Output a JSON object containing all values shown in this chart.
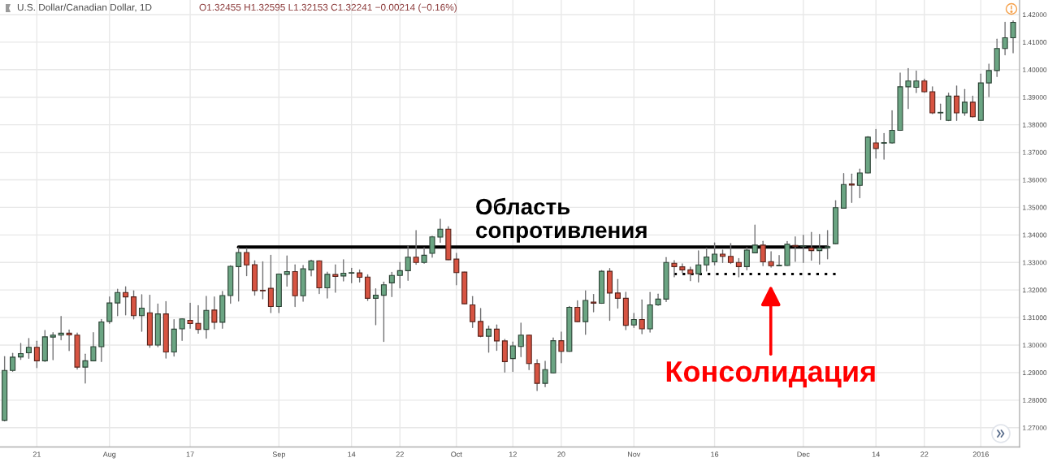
{
  "chart_data": {
    "type": "candlestick",
    "title": "U.S. Dollar/Canadian Dollar, 1D",
    "subtitle": "O1.32455 H1.32595 L1.32153 C1.32241 −0.00214 (−0.16%)",
    "categories": [
      null,
      null,
      null,
      null,
      "21",
      null,
      null,
      null,
      null,
      null,
      null,
      null,
      null,
      "Aug",
      null,
      null,
      null,
      null,
      null,
      null,
      null,
      null,
      null,
      "17",
      null,
      null,
      null,
      null,
      null,
      null,
      null,
      null,
      null,
      null,
      "Sep",
      null,
      null,
      null,
      null,
      null,
      null,
      null,
      null,
      "14",
      null,
      null,
      null,
      null,
      null,
      "22",
      null,
      null,
      null,
      null,
      null,
      null,
      "Oct",
      null,
      null,
      null,
      null,
      null,
      null,
      "12",
      null,
      null,
      null,
      null,
      null,
      "20",
      null,
      null,
      null,
      null,
      null,
      null,
      null,
      null,
      "Nov",
      null,
      null,
      null,
      null,
      null,
      null,
      null,
      null,
      null,
      "16",
      null,
      null,
      null,
      null,
      null,
      null,
      null,
      null,
      null,
      null,
      "Dec",
      null,
      null,
      null,
      null,
      null,
      null,
      null,
      null,
      "14",
      null,
      null,
      null,
      null,
      null,
      "22",
      null,
      null,
      null,
      null,
      null,
      null,
      "2016",
      null,
      null,
      null,
      null
    ],
    "ohlc": [
      [
        1.2727,
        1.2958,
        1.2725,
        1.2908
      ],
      [
        1.2908,
        1.297,
        1.2905,
        1.2956
      ],
      [
        1.2957,
        1.3006,
        1.2948,
        1.2969
      ],
      [
        1.2972,
        1.3024,
        1.2952,
        1.2992
      ],
      [
        1.2992,
        1.3014,
        1.2918,
        1.2943
      ],
      [
        1.2943,
        1.3053,
        1.294,
        1.303
      ],
      [
        1.3029,
        1.3045,
        1.2947,
        1.3036
      ],
      [
        1.3036,
        1.3104,
        1.3019,
        1.3043
      ],
      [
        1.3043,
        1.3055,
        1.298,
        1.3037
      ],
      [
        1.3036,
        1.3044,
        1.2913,
        1.292
      ],
      [
        1.292,
        1.2967,
        1.2862,
        1.2943
      ],
      [
        1.2943,
        1.3045,
        1.2943,
        1.2994
      ],
      [
        1.2994,
        1.3093,
        1.294,
        1.3084
      ],
      [
        1.3086,
        1.3175,
        1.3079,
        1.3153
      ],
      [
        1.3153,
        1.3203,
        1.3107,
        1.3191
      ],
      [
        1.3191,
        1.3212,
        1.311,
        1.3175
      ],
      [
        1.3175,
        1.3197,
        1.3095,
        1.3107
      ],
      [
        1.3107,
        1.3183,
        1.305,
        1.3134
      ],
      [
        1.3117,
        1.3181,
        1.2992,
        1.3
      ],
      [
        1.3,
        1.3149,
        1.2994,
        1.3113
      ],
      [
        1.3113,
        1.3158,
        1.2953,
        1.2975
      ],
      [
        1.2975,
        1.3092,
        1.296,
        1.3058
      ],
      [
        1.3059,
        1.3095,
        1.3017,
        1.3095
      ],
      [
        1.309,
        1.3152,
        1.3061,
        1.3078
      ],
      [
        1.3079,
        1.3143,
        1.3043,
        1.3057
      ],
      [
        1.3057,
        1.3177,
        1.3025,
        1.3126
      ],
      [
        1.3127,
        1.3175,
        1.3059,
        1.3083
      ],
      [
        1.3083,
        1.3195,
        1.3061,
        1.318
      ],
      [
        1.318,
        1.3288,
        1.3152,
        1.3286
      ],
      [
        1.3285,
        1.3353,
        1.316,
        1.3336
      ],
      [
        1.3336,
        1.3351,
        1.3252,
        1.3291
      ],
      [
        1.3292,
        1.3306,
        1.3181,
        1.3198
      ],
      [
        1.3199,
        1.3302,
        1.3168,
        1.3197
      ],
      [
        1.3206,
        1.3326,
        1.3118,
        1.314
      ],
      [
        1.314,
        1.3258,
        1.3118,
        1.3258
      ],
      [
        1.3257,
        1.3324,
        1.3214,
        1.3267
      ],
      [
        1.3267,
        1.3291,
        1.314,
        1.3179
      ],
      [
        1.3179,
        1.3289,
        1.3159,
        1.3277
      ],
      [
        1.3273,
        1.3308,
        1.3251,
        1.3306
      ],
      [
        1.3306,
        1.3306,
        1.3187,
        1.3208
      ],
      [
        1.3208,
        1.3265,
        1.3171,
        1.3257
      ],
      [
        1.3256,
        1.3291,
        1.3192,
        1.3249
      ],
      [
        1.3251,
        1.331,
        1.3233,
        1.3261
      ],
      [
        1.3261,
        1.3279,
        1.3226,
        1.3263
      ],
      [
        1.3262,
        1.3273,
        1.3229,
        1.3246
      ],
      [
        1.3247,
        1.3255,
        1.3162,
        1.317
      ],
      [
        1.317,
        1.3204,
        1.3074,
        1.3181
      ],
      [
        1.3181,
        1.3229,
        1.3013,
        1.3219
      ],
      [
        1.3226,
        1.3264,
        1.3176,
        1.3253
      ],
      [
        1.3253,
        1.33,
        1.3208,
        1.327
      ],
      [
        1.327,
        1.3359,
        1.3235,
        1.3319
      ],
      [
        1.3319,
        1.3416,
        1.3293,
        1.33
      ],
      [
        1.33,
        1.3353,
        1.3297,
        1.3326
      ],
      [
        1.3333,
        1.3395,
        1.3319,
        1.3393
      ],
      [
        1.3392,
        1.3457,
        1.3373,
        1.3421
      ],
      [
        1.3421,
        1.343,
        1.331,
        1.331
      ],
      [
        1.3312,
        1.3333,
        1.3219,
        1.3263
      ],
      [
        1.3265,
        1.3265,
        1.315,
        1.315
      ],
      [
        1.3146,
        1.3176,
        1.3064,
        1.3085
      ],
      [
        1.3086,
        1.3133,
        1.303,
        1.3032
      ],
      [
        1.3032,
        1.3069,
        1.2974,
        1.3058
      ],
      [
        1.3058,
        1.3073,
        1.2981,
        1.3015
      ],
      [
        1.3015,
        1.3021,
        1.2902,
        1.294
      ],
      [
        1.2951,
        1.3011,
        1.2904,
        1.2997
      ],
      [
        1.2995,
        1.308,
        1.2958,
        1.3036
      ],
      [
        1.3036,
        1.3036,
        1.2911,
        1.2933
      ],
      [
        1.2933,
        1.2947,
        1.2835,
        1.2861
      ],
      [
        1.2861,
        1.2941,
        1.2849,
        1.2911
      ],
      [
        1.2899,
        1.3026,
        1.2899,
        1.3016
      ],
      [
        1.3016,
        1.3047,
        1.2936,
        1.2977
      ],
      [
        1.2977,
        1.314,
        1.2977,
        1.3137
      ],
      [
        1.3137,
        1.3161,
        1.3085,
        1.3085
      ],
      [
        1.3085,
        1.3197,
        1.3039,
        1.3162
      ],
      [
        1.3156,
        1.3184,
        1.3121,
        1.3152
      ],
      [
        1.3152,
        1.3271,
        1.3152,
        1.3268
      ],
      [
        1.3268,
        1.3278,
        1.309,
        1.3189
      ],
      [
        1.3189,
        1.3238,
        1.3134,
        1.317
      ],
      [
        1.317,
        1.3192,
        1.3056,
        1.3072
      ],
      [
        1.3073,
        1.3115,
        1.3064,
        1.3093
      ],
      [
        1.3093,
        1.3164,
        1.3041,
        1.3059
      ],
      [
        1.3059,
        1.3191,
        1.3047,
        1.3146
      ],
      [
        1.3146,
        1.3185,
        1.3144,
        1.3167
      ],
      [
        1.3167,
        1.3318,
        1.3158,
        1.33
      ],
      [
        1.3297,
        1.3307,
        1.3248,
        1.3285
      ],
      [
        1.3284,
        1.3295,
        1.3263,
        1.3273
      ],
      [
        1.3273,
        1.3283,
        1.3234,
        1.3259
      ],
      [
        1.3259,
        1.3342,
        1.3229,
        1.3291
      ],
      [
        1.3291,
        1.3352,
        1.3269,
        1.332
      ],
      [
        1.3302,
        1.3371,
        1.3291,
        1.333
      ],
      [
        1.333,
        1.3345,
        1.33,
        1.3322
      ],
      [
        1.3322,
        1.3369,
        1.3296,
        1.33
      ],
      [
        1.33,
        1.3314,
        1.3248,
        1.3285
      ],
      [
        1.3285,
        1.3354,
        1.3273,
        1.3345
      ],
      [
        1.3335,
        1.3436,
        1.3335,
        1.3363
      ],
      [
        1.3363,
        1.3377,
        1.3288,
        1.3302
      ],
      [
        1.3303,
        1.3339,
        1.3283,
        1.3288
      ],
      [
        1.3288,
        1.3325,
        1.3288,
        1.329
      ],
      [
        1.3289,
        1.3376,
        1.3289,
        1.3366
      ],
      [
        1.3362,
        1.3393,
        1.3304,
        1.3358
      ],
      [
        1.3358,
        1.3399,
        1.33,
        1.336
      ],
      [
        1.3353,
        1.3409,
        1.3308,
        1.3343
      ],
      [
        1.3343,
        1.3402,
        1.3294,
        1.3353
      ],
      [
        1.3353,
        1.3416,
        1.3313,
        1.3357
      ],
      [
        1.3368,
        1.3524,
        1.3368,
        1.3499
      ],
      [
        1.3497,
        1.3623,
        1.3497,
        1.3583
      ],
      [
        1.3585,
        1.3621,
        1.3518,
        1.3581
      ],
      [
        1.358,
        1.3639,
        1.3535,
        1.3625
      ],
      [
        1.3625,
        1.3757,
        1.3625,
        1.3755
      ],
      [
        1.3734,
        1.3783,
        1.3679,
        1.3714
      ],
      [
        1.3733,
        1.3768,
        1.3675,
        1.3735
      ],
      [
        1.3734,
        1.3851,
        1.3733,
        1.378
      ],
      [
        1.378,
        1.3988,
        1.378,
        1.3938
      ],
      [
        1.3938,
        1.4004,
        1.3859,
        1.3959
      ],
      [
        1.3936,
        1.3995,
        1.3917,
        1.3959
      ],
      [
        1.3959,
        1.3966,
        1.3918,
        1.392
      ],
      [
        1.392,
        1.3938,
        1.384,
        1.3843
      ],
      [
        1.3843,
        1.3875,
        1.3819,
        1.3845
      ],
      [
        1.3816,
        1.3915,
        1.3815,
        1.3904
      ],
      [
        1.3904,
        1.3941,
        1.3816,
        1.3843
      ],
      [
        1.3843,
        1.3928,
        1.3834,
        1.3882
      ],
      [
        1.3882,
        1.3904,
        1.3828,
        1.3829
      ],
      [
        1.3816,
        1.3984,
        1.3816,
        1.3952
      ],
      [
        1.3952,
        1.402,
        1.3902,
        1.3997
      ],
      [
        1.3997,
        1.4111,
        1.3975,
        1.4077
      ],
      [
        1.4077,
        1.4172,
        1.4054,
        1.4116
      ],
      [
        1.4116,
        1.4177,
        1.4061,
        1.4172
      ]
    ],
    "colors": [
      "#6ba583",
      "#6ba583",
      "#6ba583",
      "#6ba583",
      "#d75442",
      "#6ba583",
      "#6ba583",
      "#6ba583",
      "#d75442",
      "#d75442",
      "#6ba583",
      "#6ba583",
      "#6ba583",
      "#6ba583",
      "#6ba583",
      "#d75442",
      "#d75442",
      "#6ba583",
      "#d75442",
      "#6ba583",
      "#d75442",
      "#6ba583",
      "#6ba583",
      "#d75442",
      "#d75442",
      "#6ba583",
      "#d75442",
      "#6ba583",
      "#6ba583",
      "#6ba583",
      "#d75442",
      "#d75442",
      "#d75442",
      "#d75442",
      "#6ba583",
      "#6ba583",
      "#d75442",
      "#6ba583",
      "#6ba583",
      "#d75442",
      "#6ba583",
      "#d75442",
      "#6ba583",
      "#6ba583",
      "#d75442",
      "#d75442",
      "#6ba583",
      "#6ba583",
      "#6ba583",
      "#6ba583",
      "#6ba583",
      "#d75442",
      "#6ba583",
      "#6ba583",
      "#6ba583",
      "#d75442",
      "#d75442",
      "#d75442",
      "#d75442",
      "#d75442",
      "#6ba583",
      "#d75442",
      "#d75442",
      "#6ba583",
      "#6ba583",
      "#d75442",
      "#d75442",
      "#6ba583",
      "#6ba583",
      "#d75442",
      "#6ba583",
      "#d75442",
      "#6ba583",
      "#d75442",
      "#6ba583",
      "#d75442",
      "#d75442",
      "#d75442",
      "#6ba583",
      "#d75442",
      "#6ba583",
      "#6ba583",
      "#6ba583",
      "#d75442",
      "#d75442",
      "#d75442",
      "#6ba583",
      "#6ba583",
      "#6ba583",
      "#d75442",
      "#d75442",
      "#d75442",
      "#6ba583",
      "#6ba583",
      "#d75442",
      "#d75442",
      "#6ba583",
      "#6ba583",
      "#d75442",
      "#6ba583",
      "#d75442",
      "#6ba583",
      "#6ba583",
      "#6ba583",
      "#6ba583",
      "#d75442",
      "#6ba583",
      "#6ba583",
      "#d75442",
      "#6ba583",
      "#6ba583",
      "#6ba583",
      "#6ba583",
      "#6ba583",
      "#d75442",
      "#d75442",
      "#6ba583",
      "#6ba583",
      "#d75442",
      "#6ba583",
      "#d75442",
      "#6ba583",
      "#6ba583",
      "#6ba583",
      "#6ba583",
      "#6ba583"
    ],
    "series": [
      {
        "type": "line",
        "color": "#000000",
        "line_style": "solid",
        "values": [
          null,
          null,
          null,
          null,
          null,
          null,
          null,
          null,
          null,
          null,
          null,
          null,
          null,
          null,
          null,
          null,
          null,
          null,
          null,
          null,
          null,
          null,
          null,
          null,
          null,
          null,
          null,
          null,
          null,
          1.3356,
          1.3356,
          1.3356,
          1.3356,
          1.3356,
          1.3356,
          1.3356,
          1.3356,
          1.3356,
          1.3356,
          1.3356,
          1.3356,
          1.3356,
          1.3356,
          1.3356,
          1.3356,
          1.3356,
          1.3356,
          1.3356,
          1.3356,
          1.3356,
          1.3356,
          1.3356,
          1.3356,
          1.3356,
          1.3356,
          1.3356,
          1.3356,
          1.3356,
          1.3356,
          1.3356,
          1.3356,
          1.3356,
          1.3356,
          1.3356,
          1.3356,
          1.3356,
          1.3356,
          1.3356,
          1.3356,
          1.3356,
          1.3356,
          1.3356,
          1.3356,
          1.3356,
          1.3356,
          1.3356,
          1.3356,
          1.3356,
          1.3356,
          1.3356,
          1.3356,
          1.3356,
          1.3356,
          1.3356,
          1.3356,
          1.3356,
          1.3356,
          1.3356,
          1.3356,
          1.3356,
          1.3356,
          1.3356,
          1.3356,
          1.3356,
          1.3356,
          1.3356,
          1.3356,
          1.3356,
          1.3356,
          1.3356,
          1.3356,
          1.3356,
          1.3356,
          null,
          null,
          null,
          null,
          null,
          null,
          null,
          null,
          null,
          null,
          null,
          null,
          null,
          null,
          null,
          null,
          null,
          null,
          null,
          null,
          null,
          null,
          null
        ]
      },
      {
        "type": "line",
        "color": "#000000",
        "line_style": "dotted",
        "values": [
          null,
          null,
          null,
          null,
          null,
          null,
          null,
          null,
          null,
          null,
          null,
          null,
          null,
          null,
          null,
          null,
          null,
          null,
          null,
          null,
          null,
          null,
          null,
          null,
          null,
          null,
          null,
          null,
          null,
          null,
          null,
          null,
          null,
          null,
          null,
          null,
          null,
          null,
          null,
          null,
          null,
          null,
          null,
          null,
          null,
          null,
          null,
          null,
          null,
          null,
          null,
          null,
          null,
          null,
          null,
          null,
          null,
          null,
          null,
          null,
          null,
          null,
          null,
          null,
          null,
          null,
          null,
          null,
          null,
          null,
          null,
          null,
          null,
          null,
          null,
          null,
          null,
          null,
          null,
          null,
          null,
          null,
          null,
          1.3258,
          1.3258,
          1.3258,
          1.3258,
          1.3258,
          1.3258,
          1.3258,
          1.3258,
          1.3258,
          1.3258,
          1.3258,
          1.3258,
          1.3258,
          1.3258,
          1.3258,
          1.3258,
          1.3258,
          1.3258,
          1.3258,
          1.3258,
          1.3258,
          null,
          null,
          null,
          null,
          null,
          null,
          null,
          null,
          null,
          null,
          null,
          null,
          null,
          null,
          null,
          null,
          null,
          null,
          null,
          null,
          null,
          null
        ]
      }
    ],
    "ylim": [
      1.263,
      1.4253
    ],
    "yticks": [
      {
        "value": 1.27,
        "label": "1.27000"
      },
      {
        "value": 1.28,
        "label": "1.28000"
      },
      {
        "value": 1.29,
        "label": "1.29000"
      },
      {
        "value": 1.3,
        "label": "1.30000"
      },
      {
        "value": 1.31,
        "label": "1.31000"
      },
      {
        "value": 1.32,
        "label": "1.32000"
      },
      {
        "value": 1.33,
        "label": "1.33000"
      },
      {
        "value": 1.34,
        "label": "1.34000"
      },
      {
        "value": 1.35,
        "label": "1.35000"
      },
      {
        "value": 1.36,
        "label": "1.36000"
      },
      {
        "value": 1.37,
        "label": "1.37000"
      },
      {
        "value": 1.38,
        "label": "1.38000"
      },
      {
        "value": 1.39,
        "label": "1.39000"
      },
      {
        "value": 1.4,
        "label": "1.40000"
      },
      {
        "value": 1.41,
        "label": "1.41000"
      },
      {
        "value": 1.42,
        "label": "1.42000"
      }
    ],
    "grid": true,
    "annotations": [
      "Область\nсопротивления",
      {
        "text": "Консолидация",
        "y": 1.3258
      }
    ]
  }
}
